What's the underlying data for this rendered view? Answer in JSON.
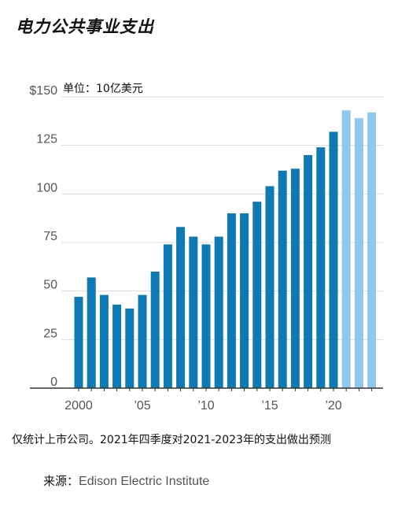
{
  "title": "电力公共事业支出",
  "chart_data": {
    "type": "bar",
    "unit_label": "单位：10亿美元",
    "ylim": [
      0,
      150
    ],
    "yticks": [
      0,
      25,
      50,
      75,
      100,
      125,
      150
    ],
    "ytick_labels": [
      "0",
      "25",
      "50",
      "75",
      "100",
      "125",
      "$150"
    ],
    "x_tick_years": [
      2000,
      2005,
      2010,
      2015,
      2020
    ],
    "x_tick_labels": [
      "2000",
      "’05",
      "’10",
      "’15",
      "’20"
    ],
    "grid": true,
    "categories": [
      2000,
      2001,
      2002,
      2003,
      2004,
      2005,
      2006,
      2007,
      2008,
      2009,
      2010,
      2011,
      2012,
      2013,
      2014,
      2015,
      2016,
      2017,
      2018,
      2019,
      2020,
      2021,
      2022,
      2023
    ],
    "values": [
      47,
      57,
      48,
      43,
      41,
      48,
      60,
      74,
      83,
      78,
      74,
      78,
      90,
      90,
      96,
      104,
      112,
      113,
      120,
      124,
      132,
      143,
      139,
      142
    ],
    "projected": [
      false,
      false,
      false,
      false,
      false,
      false,
      false,
      false,
      false,
      false,
      false,
      false,
      false,
      false,
      false,
      false,
      false,
      false,
      false,
      false,
      false,
      true,
      true,
      true
    ],
    "colors": {
      "actual": "#0e79b2",
      "projected": "#8ec8ee",
      "grid": "#dcdcdc",
      "axis": "#333333"
    }
  },
  "note": "仅统计上市公司。2021年四季度对2021-2023年的支出做出预测",
  "source_label": "来源：",
  "source_name": "Edison Electric Institute"
}
